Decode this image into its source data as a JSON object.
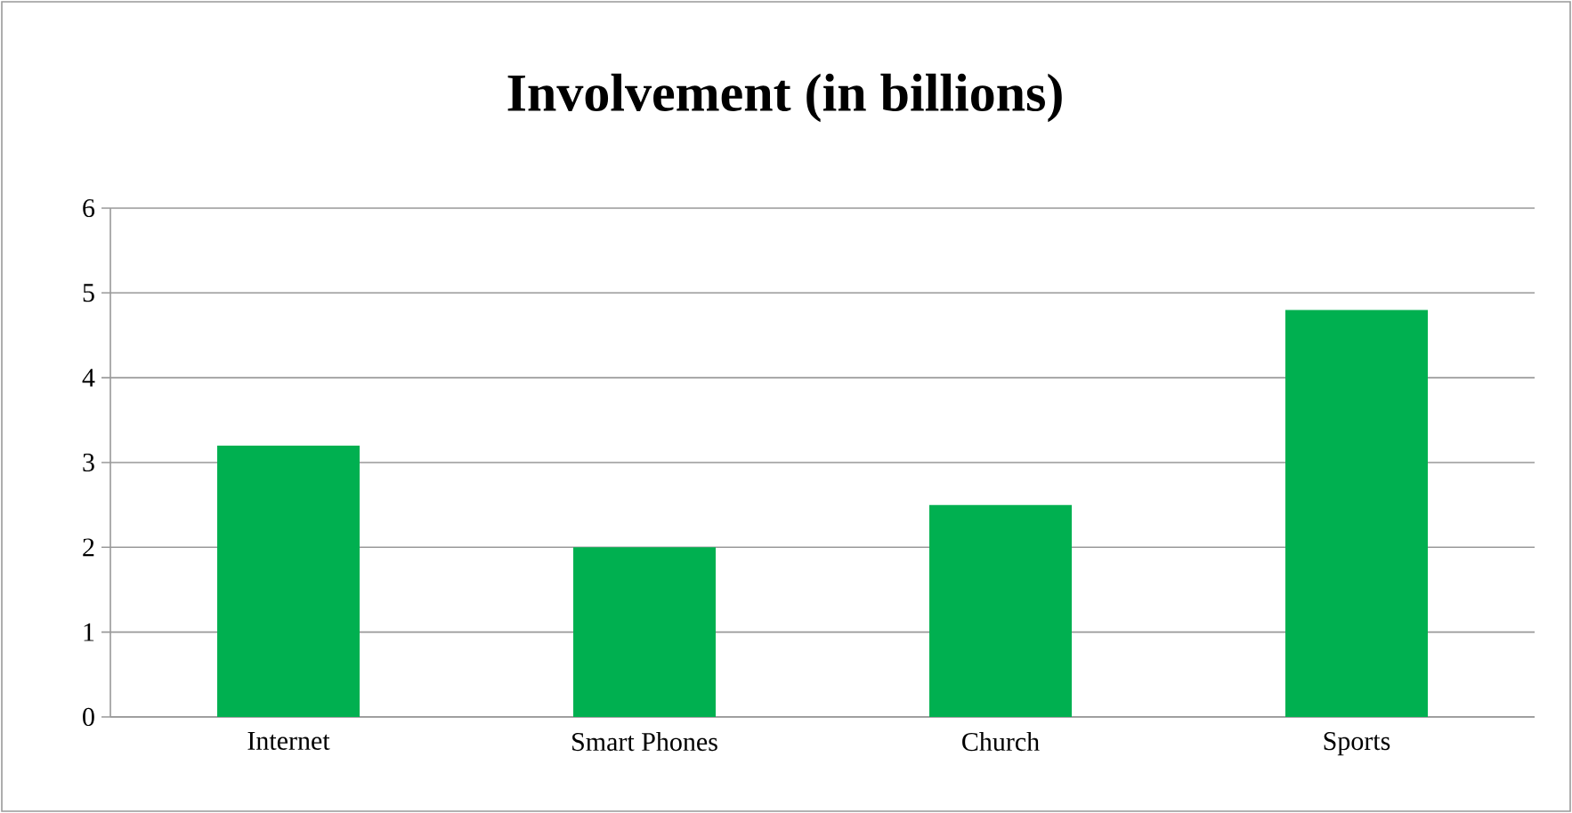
{
  "chart_data": {
    "type": "bar",
    "title": "Involvement (in billions)",
    "categories": [
      "Internet",
      "Smart Phones",
      "Church",
      "Sports"
    ],
    "values": [
      3.2,
      2,
      2.5,
      4.8
    ],
    "color": "#00b050",
    "ylim": [
      0,
      6
    ],
    "yticks": [
      0,
      1,
      2,
      3,
      4,
      5,
      6
    ],
    "grid": "y"
  }
}
